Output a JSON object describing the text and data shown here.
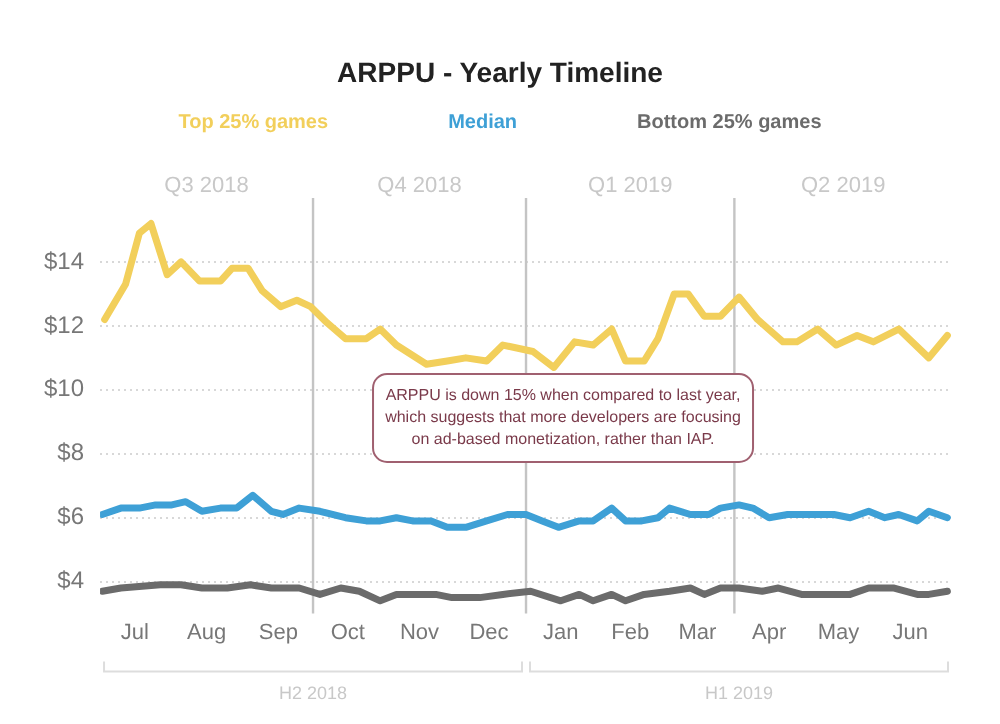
{
  "chart_data": {
    "type": "line",
    "title": "ARPPU - Yearly Timeline",
    "legend": "top",
    "grid": "y",
    "marker": "none",
    "line_style": "solid",
    "xlim": [
      "2018-07-01",
      "2019-07-04"
    ],
    "xticks": [
      {
        "value": "2018-07-16",
        "label": "Jul"
      },
      {
        "value": "2018-08-16",
        "label": "Aug"
      },
      {
        "value": "2018-09-16",
        "label": "Sep"
      },
      {
        "value": "2018-10-16",
        "label": "Oct"
      },
      {
        "value": "2018-11-16",
        "label": "Nov"
      },
      {
        "value": "2018-12-16",
        "label": "Dec"
      },
      {
        "value": "2019-01-16",
        "label": "Jan"
      },
      {
        "value": "2019-02-15",
        "label": "Feb"
      },
      {
        "value": "2019-03-16",
        "label": "Mar"
      },
      {
        "value": "2019-04-16",
        "label": "Apr"
      },
      {
        "value": "2019-05-16",
        "label": "May"
      },
      {
        "value": "2019-06-16",
        "label": "Jun"
      }
    ],
    "ylim": [
      3,
      16
    ],
    "yticks": [
      {
        "value": 4,
        "label": "$4"
      },
      {
        "value": 6,
        "label": "$6"
      },
      {
        "value": 8,
        "label": "$8"
      },
      {
        "value": 10,
        "label": "$10"
      },
      {
        "value": 12,
        "label": "$12"
      },
      {
        "value": 14,
        "label": "$14"
      }
    ],
    "ref_lines": [
      {
        "axis": "x",
        "value": "2018-10-01",
        "color": "#c4c4c4"
      },
      {
        "axis": "x",
        "value": "2019-01-01",
        "color": "#c4c4c4"
      },
      {
        "axis": "x",
        "value": "2019-04-01",
        "color": "#c4c4c4"
      }
    ],
    "annotations": [
      "Q3 2018",
      "Q4 2018",
      "Q1 2019",
      "Q2 2019",
      "H2 2018",
      "H1 2019",
      "ARPPU is down 15% when compared to last year, which suggests that more developers are focusing on ad-based monetization, rather than IAP."
    ],
    "series": [
      {
        "name": "Top 25% games",
        "color": "#f2cf5b",
        "x": [
          "2018-07-03",
          "2018-07-12",
          "2018-07-18",
          "2018-07-23",
          "2018-07-30",
          "2018-08-05",
          "2018-08-13",
          "2018-08-22",
          "2018-08-27",
          "2018-09-03",
          "2018-09-09",
          "2018-09-17",
          "2018-09-24",
          "2018-09-30",
          "2018-10-07",
          "2018-10-15",
          "2018-10-24",
          "2018-10-30",
          "2018-11-06",
          "2018-11-19",
          "2018-11-28",
          "2018-12-06",
          "2018-12-15",
          "2018-12-22",
          "2019-01-04",
          "2019-01-13",
          "2019-01-22",
          "2019-01-30",
          "2019-02-07",
          "2019-02-13",
          "2019-02-21",
          "2019-02-27",
          "2019-03-06",
          "2019-03-12",
          "2019-03-19",
          "2019-03-26",
          "2019-04-03",
          "2019-04-11",
          "2019-04-22",
          "2019-04-28",
          "2019-05-07",
          "2019-05-15",
          "2019-05-24",
          "2019-05-31",
          "2019-06-11",
          "2019-06-24",
          "2019-07-02"
        ],
        "values": [
          12.2,
          13.3,
          14.9,
          15.2,
          13.6,
          14.0,
          13.4,
          13.4,
          13.8,
          13.8,
          13.1,
          12.6,
          12.8,
          12.6,
          12.1,
          11.6,
          11.6,
          11.9,
          11.4,
          10.8,
          10.9,
          11.0,
          10.9,
          11.4,
          11.2,
          10.7,
          11.5,
          11.4,
          11.9,
          10.9,
          10.9,
          11.6,
          13.0,
          13.0,
          12.3,
          12.3,
          12.9,
          12.2,
          11.5,
          11.5,
          11.9,
          11.4,
          11.7,
          11.5,
          11.9,
          11.0,
          11.7
        ]
      },
      {
        "name": "Median",
        "color": "#3ea0d6",
        "x": [
          "2018-07-02",
          "2018-07-10",
          "2018-07-18",
          "2018-07-25",
          "2018-08-01",
          "2018-08-07",
          "2018-08-14",
          "2018-08-22",
          "2018-08-29",
          "2018-09-05",
          "2018-09-13",
          "2018-09-18",
          "2018-09-25",
          "2018-10-04",
          "2018-10-15",
          "2018-10-24",
          "2018-10-30",
          "2018-11-06",
          "2018-11-13",
          "2018-11-21",
          "2018-11-28",
          "2018-12-06",
          "2018-12-15",
          "2018-12-24",
          "2019-01-01",
          "2019-01-08",
          "2019-01-15",
          "2019-01-24",
          "2019-01-30",
          "2019-02-07",
          "2019-02-13",
          "2019-02-20",
          "2019-02-27",
          "2019-03-04",
          "2019-03-13",
          "2019-03-21",
          "2019-03-26",
          "2019-04-03",
          "2019-04-09",
          "2019-04-16",
          "2019-04-24",
          "2019-04-30",
          "2019-05-14",
          "2019-05-21",
          "2019-05-29",
          "2019-06-05",
          "2019-06-11",
          "2019-06-19",
          "2019-06-24",
          "2019-07-02"
        ],
        "values": [
          6.1,
          6.3,
          6.3,
          6.4,
          6.4,
          6.5,
          6.2,
          6.3,
          6.3,
          6.7,
          6.2,
          6.1,
          6.3,
          6.2,
          6.0,
          5.9,
          5.9,
          6.0,
          5.9,
          5.9,
          5.7,
          5.7,
          5.9,
          6.1,
          6.1,
          5.9,
          5.7,
          5.9,
          5.9,
          6.3,
          5.9,
          5.9,
          6.0,
          6.3,
          6.1,
          6.1,
          6.3,
          6.4,
          6.3,
          6.0,
          6.1,
          6.1,
          6.1,
          6.0,
          6.2,
          6.0,
          6.1,
          5.9,
          6.2,
          6.0
        ]
      },
      {
        "name": "Bottom 25% games",
        "color": "#6b6b6b",
        "x": [
          "2018-07-02",
          "2018-07-10",
          "2018-07-27",
          "2018-08-05",
          "2018-08-14",
          "2018-08-25",
          "2018-09-04",
          "2018-09-13",
          "2018-09-25",
          "2018-10-04",
          "2018-10-13",
          "2018-10-21",
          "2018-10-30",
          "2018-11-06",
          "2018-11-15",
          "2018-11-23",
          "2018-11-30",
          "2018-12-12",
          "2018-12-22",
          "2019-01-03",
          "2019-01-16",
          "2019-01-24",
          "2019-01-30",
          "2019-02-07",
          "2019-02-13",
          "2019-02-21",
          "2019-03-04",
          "2019-03-13",
          "2019-03-19",
          "2019-03-26",
          "2019-04-03",
          "2019-04-13",
          "2019-04-20",
          "2019-04-30",
          "2019-05-14",
          "2019-05-21",
          "2019-05-29",
          "2019-06-09",
          "2019-06-19",
          "2019-06-24",
          "2019-07-02"
        ],
        "values": [
          3.7,
          3.8,
          3.9,
          3.9,
          3.8,
          3.8,
          3.9,
          3.8,
          3.8,
          3.6,
          3.8,
          3.7,
          3.4,
          3.6,
          3.6,
          3.6,
          3.5,
          3.5,
          3.6,
          3.7,
          3.4,
          3.6,
          3.4,
          3.6,
          3.4,
          3.6,
          3.7,
          3.8,
          3.6,
          3.8,
          3.8,
          3.7,
          3.8,
          3.6,
          3.6,
          3.6,
          3.8,
          3.8,
          3.6,
          3.6,
          3.7
        ]
      }
    ]
  }
}
